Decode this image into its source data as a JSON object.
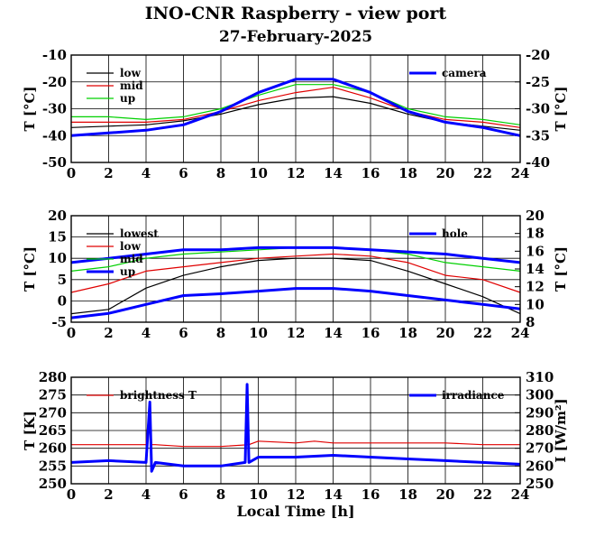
{
  "title": "INO-CNR Raspberry - view port",
  "subtitle": "27-February-2025",
  "colors": {
    "black": "#000000",
    "red": "#e00000",
    "green": "#00d000",
    "blue": "#0000ff"
  },
  "chart_data": [
    {
      "type": "line",
      "ylabel": "T [°C]",
      "y2label": "T [°C]",
      "xlim": [
        0,
        24
      ],
      "ylim": [
        -50,
        -10
      ],
      "y2lim": [
        -40,
        -20
      ],
      "xticks": [
        "0",
        "2",
        "4",
        "6",
        "8",
        "10",
        "12",
        "14",
        "16",
        "18",
        "20",
        "22",
        "24"
      ],
      "yticks": [
        "-50",
        "-40",
        "-30",
        "-20",
        "-10"
      ],
      "y2ticks": [
        "-40",
        "-35",
        "-30",
        "-25",
        "-20"
      ],
      "grid": true,
      "legend_left_position": "top-left",
      "legend_right_position": "top-right",
      "series": [
        {
          "name": "low",
          "color": "black",
          "axis": "left",
          "x": [
            0,
            2,
            4,
            6,
            8,
            10,
            12,
            14,
            16,
            18,
            20,
            22,
            24
          ],
          "y": [
            -37,
            -36.5,
            -36,
            -34.5,
            -32,
            -28.5,
            -26,
            -25.5,
            -28,
            -32,
            -35,
            -36.5,
            -38
          ]
        },
        {
          "name": "mid",
          "color": "red",
          "axis": "left",
          "x": [
            0,
            2,
            4,
            6,
            8,
            10,
            12,
            14,
            16,
            18,
            20,
            22,
            24
          ],
          "y": [
            -35,
            -35,
            -35,
            -34,
            -31,
            -27,
            -24,
            -22,
            -26,
            -31,
            -34,
            -35,
            -37
          ]
        },
        {
          "name": "up",
          "color": "green",
          "axis": "left",
          "x": [
            0,
            2,
            4,
            6,
            8,
            10,
            12,
            14,
            16,
            18,
            20,
            22,
            24
          ],
          "y": [
            -33,
            -33,
            -34,
            -33,
            -30,
            -25,
            -21,
            -21,
            -24,
            -30,
            -33,
            -34,
            -36
          ]
        },
        {
          "name": "camera",
          "color": "blue",
          "axis": "right",
          "x": [
            0,
            2,
            4,
            6,
            8,
            10,
            12,
            14,
            16,
            18,
            20,
            22,
            24
          ],
          "y": [
            -35,
            -34.5,
            -34,
            -33,
            -30.5,
            -27,
            -24.5,
            -24.5,
            -27,
            -30.5,
            -32.5,
            -33.5,
            -35
          ]
        }
      ]
    },
    {
      "type": "line",
      "ylabel": "T [°C]",
      "y2label": "T [°C]",
      "xlim": [
        0,
        24
      ],
      "ylim": [
        -5,
        20
      ],
      "y2lim": [
        8,
        20
      ],
      "xticks": [
        "0",
        "2",
        "4",
        "6",
        "8",
        "10",
        "12",
        "14",
        "16",
        "18",
        "20",
        "22",
        "24"
      ],
      "yticks": [
        "-5",
        "0",
        "5",
        "10",
        "15",
        "20"
      ],
      "y2ticks": [
        "8",
        "10",
        "12",
        "14",
        "16",
        "18",
        "20"
      ],
      "grid": true,
      "legend_left_position": "top-left",
      "legend_right_position": "top-right",
      "series": [
        {
          "name": "lowest",
          "color": "black",
          "axis": "left",
          "x": [
            0,
            2,
            4,
            6,
            8,
            10,
            12,
            14,
            16,
            18,
            20,
            22,
            24
          ],
          "y": [
            -3,
            -2,
            3,
            6,
            8,
            9.5,
            10,
            10,
            9.5,
            7,
            4,
            1,
            -3
          ]
        },
        {
          "name": "low",
          "color": "red",
          "axis": "left",
          "x": [
            0,
            2,
            4,
            6,
            8,
            10,
            12,
            14,
            16,
            18,
            20,
            22,
            24
          ],
          "y": [
            2,
            4,
            7,
            8,
            9,
            10,
            10.5,
            11,
            10.5,
            9,
            6,
            5,
            2
          ]
        },
        {
          "name": "mid",
          "color": "green",
          "axis": "left",
          "x": [
            0,
            2,
            4,
            6,
            8,
            10,
            12,
            14,
            16,
            18,
            20,
            22,
            24
          ],
          "y": [
            7,
            8,
            10,
            11,
            11.5,
            12,
            12.5,
            12.5,
            12,
            11,
            9,
            8,
            7
          ]
        },
        {
          "name": "up",
          "color": "blue",
          "axis": "left",
          "x": [
            0,
            2,
            4,
            6,
            8,
            10,
            12,
            14,
            16,
            18,
            20,
            22,
            24
          ],
          "y": [
            9,
            10,
            11,
            12,
            12,
            12.5,
            12.5,
            12.5,
            12,
            11.5,
            11,
            10,
            9
          ]
        },
        {
          "name": "hole",
          "color": "blue",
          "axis": "right",
          "x": [
            0,
            2,
            4,
            6,
            8,
            10,
            12,
            14,
            16,
            18,
            20,
            22,
            24
          ],
          "y": [
            8.5,
            9,
            10,
            11,
            11.2,
            11.5,
            11.8,
            11.8,
            11.5,
            11,
            10.5,
            10,
            9.5
          ]
        }
      ]
    },
    {
      "type": "line",
      "xlabel": "Local Time [h]",
      "ylabel": "T [K]",
      "y2label": "I [W/m²]",
      "xlim": [
        0,
        24
      ],
      "ylim": [
        250,
        280
      ],
      "y2lim": [
        250,
        310
      ],
      "xticks": [
        "0",
        "2",
        "4",
        "6",
        "8",
        "10",
        "12",
        "14",
        "16",
        "18",
        "20",
        "22",
        "24"
      ],
      "yticks": [
        "250",
        "255",
        "260",
        "265",
        "270",
        "275",
        "280"
      ],
      "y2ticks": [
        "250",
        "260",
        "270",
        "280",
        "290",
        "300",
        "310"
      ],
      "grid": true,
      "legend_left_position": "top-left",
      "legend_right_position": "top-right",
      "series": [
        {
          "name": "brightness T",
          "color": "red",
          "axis": "left",
          "x": [
            0,
            2,
            4,
            4.2,
            4.3,
            4.5,
            6,
            8,
            9.5,
            10,
            12,
            13,
            14,
            16,
            18,
            20,
            22,
            24
          ],
          "y": [
            261,
            261,
            261,
            273,
            261,
            261,
            260.5,
            260.5,
            261,
            262,
            261.5,
            262,
            261.5,
            261.5,
            261.5,
            261.5,
            261,
            261
          ]
        },
        {
          "name": "irradiance",
          "color": "blue",
          "axis": "right",
          "x": [
            0,
            2,
            4,
            4.2,
            4.3,
            4.5,
            6,
            8,
            9.3,
            9.4,
            9.5,
            10,
            12,
            14,
            16,
            18,
            20,
            22,
            24
          ],
          "y": [
            262,
            263,
            262,
            296,
            257,
            262,
            260,
            260,
            262,
            306,
            262,
            265,
            265,
            266,
            265,
            264,
            263,
            262,
            261
          ]
        }
      ]
    }
  ]
}
